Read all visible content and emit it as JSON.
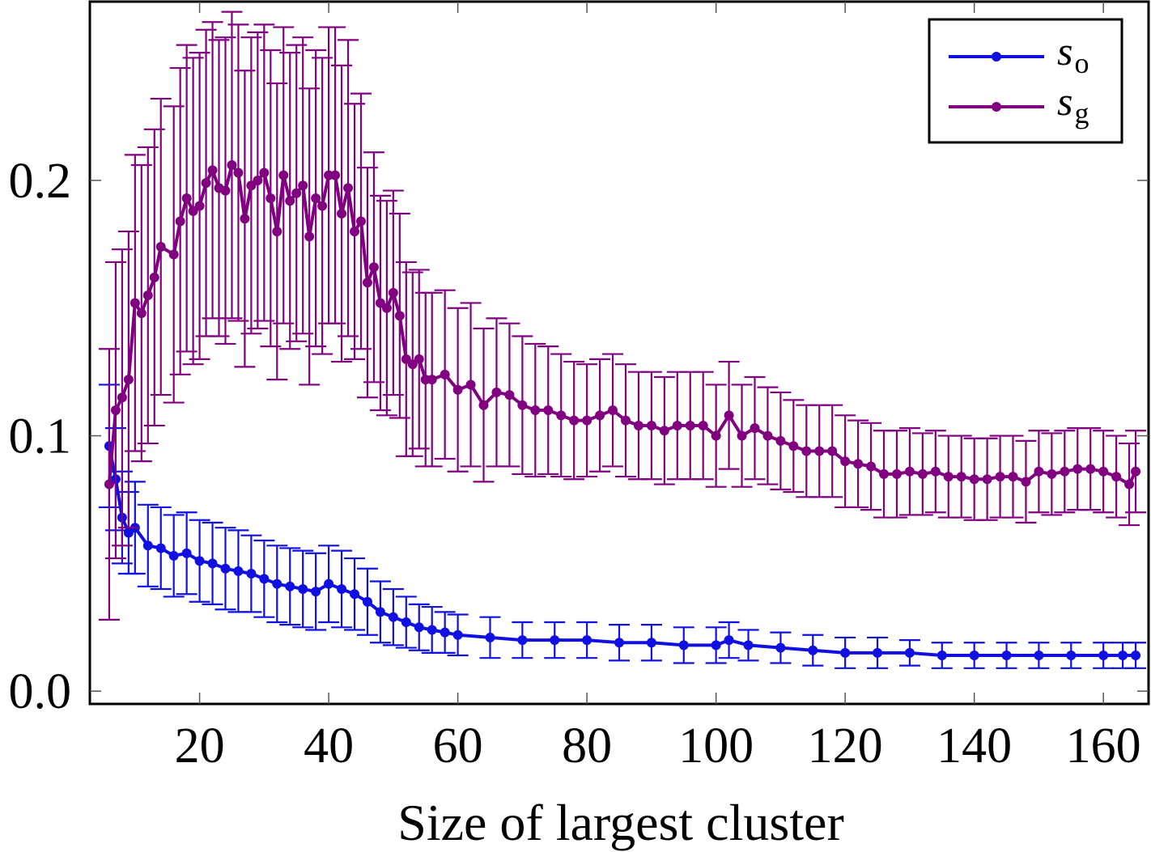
{
  "chart_data": {
    "type": "line",
    "title": "",
    "xlabel": "Size of largest cluster",
    "ylabel": "",
    "xlim": [
      3,
      167
    ],
    "ylim": [
      -0.005,
      0.27
    ],
    "xticks": [
      20,
      40,
      60,
      80,
      100,
      120,
      140,
      160
    ],
    "yticks": [
      0.0,
      0.1,
      0.2
    ],
    "ytick_labels": [
      "0.0",
      "0.1",
      "0.2"
    ],
    "grid": false,
    "legend_position": "top-right",
    "series": [
      {
        "name": "s",
        "subscript": "o",
        "color": "#1010e0",
        "points": [
          [
            6,
            0.096,
            0.024
          ],
          [
            7,
            0.083,
            0.02
          ],
          [
            8,
            0.068,
            0.018
          ],
          [
            9,
            0.062,
            0.016
          ],
          [
            10,
            0.064,
            0.018
          ],
          [
            12,
            0.057,
            0.016
          ],
          [
            14,
            0.056,
            0.016
          ],
          [
            16,
            0.053,
            0.016
          ],
          [
            18,
            0.054,
            0.016
          ],
          [
            20,
            0.051,
            0.016
          ],
          [
            22,
            0.05,
            0.016
          ],
          [
            24,
            0.048,
            0.016
          ],
          [
            26,
            0.047,
            0.016
          ],
          [
            28,
            0.046,
            0.015
          ],
          [
            30,
            0.044,
            0.015
          ],
          [
            32,
            0.042,
            0.015
          ],
          [
            34,
            0.041,
            0.015
          ],
          [
            36,
            0.04,
            0.015
          ],
          [
            38,
            0.039,
            0.015
          ],
          [
            40,
            0.042,
            0.015
          ],
          [
            42,
            0.04,
            0.015
          ],
          [
            44,
            0.038,
            0.014
          ],
          [
            46,
            0.035,
            0.013
          ],
          [
            48,
            0.031,
            0.012
          ],
          [
            50,
            0.029,
            0.011
          ],
          [
            52,
            0.027,
            0.01
          ],
          [
            54,
            0.025,
            0.009
          ],
          [
            56,
            0.024,
            0.009
          ],
          [
            58,
            0.023,
            0.008
          ],
          [
            60,
            0.022,
            0.008
          ],
          [
            65,
            0.021,
            0.008
          ],
          [
            70,
            0.02,
            0.007
          ],
          [
            75,
            0.02,
            0.007
          ],
          [
            80,
            0.02,
            0.007
          ],
          [
            85,
            0.019,
            0.007
          ],
          [
            90,
            0.019,
            0.007
          ],
          [
            95,
            0.018,
            0.007
          ],
          [
            100,
            0.018,
            0.007
          ],
          [
            102,
            0.02,
            0.007
          ],
          [
            105,
            0.018,
            0.006
          ],
          [
            110,
            0.017,
            0.006
          ],
          [
            115,
            0.016,
            0.006
          ],
          [
            120,
            0.015,
            0.006
          ],
          [
            125,
            0.015,
            0.006
          ],
          [
            130,
            0.015,
            0.005
          ],
          [
            135,
            0.014,
            0.005
          ],
          [
            140,
            0.014,
            0.005
          ],
          [
            145,
            0.014,
            0.005
          ],
          [
            150,
            0.014,
            0.005
          ],
          [
            155,
            0.014,
            0.005
          ],
          [
            160,
            0.014,
            0.005
          ],
          [
            163,
            0.014,
            0.005
          ],
          [
            165,
            0.014,
            0.005
          ]
        ]
      },
      {
        "name": "s",
        "subscript": "g",
        "color": "#800080",
        "points": [
          [
            6,
            0.081,
            0.053
          ],
          [
            7,
            0.11,
            0.058
          ],
          [
            8,
            0.115,
            0.058
          ],
          [
            9,
            0.122,
            0.058
          ],
          [
            10,
            0.152,
            0.058
          ],
          [
            11,
            0.148,
            0.058
          ],
          [
            12,
            0.155,
            0.058
          ],
          [
            13,
            0.162,
            0.058
          ],
          [
            14,
            0.174,
            0.058
          ],
          [
            16,
            0.171,
            0.058
          ],
          [
            17,
            0.184,
            0.06
          ],
          [
            18,
            0.193,
            0.06
          ],
          [
            19,
            0.188,
            0.06
          ],
          [
            20,
            0.19,
            0.06
          ],
          [
            21,
            0.199,
            0.06
          ],
          [
            22,
            0.204,
            0.058
          ],
          [
            23,
            0.197,
            0.058
          ],
          [
            24,
            0.196,
            0.06
          ],
          [
            25,
            0.206,
            0.06
          ],
          [
            26,
            0.203,
            0.058
          ],
          [
            27,
            0.185,
            0.058
          ],
          [
            28,
            0.198,
            0.058
          ],
          [
            29,
            0.2,
            0.058
          ],
          [
            30,
            0.203,
            0.058
          ],
          [
            31,
            0.193,
            0.058
          ],
          [
            32,
            0.18,
            0.058
          ],
          [
            33,
            0.202,
            0.058
          ],
          [
            34,
            0.192,
            0.058
          ],
          [
            35,
            0.195,
            0.058
          ],
          [
            36,
            0.198,
            0.058
          ],
          [
            37,
            0.178,
            0.058
          ],
          [
            38,
            0.193,
            0.058
          ],
          [
            39,
            0.19,
            0.058
          ],
          [
            40,
            0.202,
            0.058
          ],
          [
            41,
            0.202,
            0.058
          ],
          [
            42,
            0.187,
            0.058
          ],
          [
            43,
            0.197,
            0.058
          ],
          [
            44,
            0.18,
            0.05
          ],
          [
            45,
            0.184,
            0.05
          ],
          [
            46,
            0.16,
            0.045
          ],
          [
            47,
            0.166,
            0.045
          ],
          [
            48,
            0.152,
            0.042
          ],
          [
            49,
            0.15,
            0.042
          ],
          [
            50,
            0.156,
            0.04
          ],
          [
            51,
            0.147,
            0.04
          ],
          [
            52,
            0.13,
            0.038
          ],
          [
            53,
            0.128,
            0.036
          ],
          [
            54,
            0.13,
            0.035
          ],
          [
            55,
            0.122,
            0.034
          ],
          [
            56,
            0.122,
            0.034
          ],
          [
            58,
            0.124,
            0.033
          ],
          [
            60,
            0.118,
            0.032
          ],
          [
            62,
            0.12,
            0.032
          ],
          [
            64,
            0.112,
            0.03
          ],
          [
            66,
            0.117,
            0.029
          ],
          [
            68,
            0.116,
            0.028
          ],
          [
            70,
            0.112,
            0.027
          ],
          [
            72,
            0.11,
            0.026
          ],
          [
            74,
            0.11,
            0.025
          ],
          [
            76,
            0.108,
            0.024
          ],
          [
            78,
            0.106,
            0.023
          ],
          [
            80,
            0.106,
            0.022
          ],
          [
            82,
            0.108,
            0.022
          ],
          [
            84,
            0.11,
            0.022
          ],
          [
            86,
            0.106,
            0.022
          ],
          [
            88,
            0.104,
            0.021
          ],
          [
            90,
            0.104,
            0.021
          ],
          [
            92,
            0.102,
            0.021
          ],
          [
            94,
            0.104,
            0.021
          ],
          [
            96,
            0.104,
            0.021
          ],
          [
            98,
            0.104,
            0.021
          ],
          [
            100,
            0.1,
            0.02
          ],
          [
            102,
            0.108,
            0.021
          ],
          [
            104,
            0.1,
            0.02
          ],
          [
            106,
            0.103,
            0.02
          ],
          [
            108,
            0.1,
            0.019
          ],
          [
            110,
            0.098,
            0.019
          ],
          [
            112,
            0.096,
            0.018
          ],
          [
            114,
            0.094,
            0.018
          ],
          [
            116,
            0.094,
            0.018
          ],
          [
            118,
            0.094,
            0.018
          ],
          [
            120,
            0.09,
            0.018
          ],
          [
            122,
            0.089,
            0.017
          ],
          [
            124,
            0.088,
            0.017
          ],
          [
            126,
            0.085,
            0.017
          ],
          [
            128,
            0.085,
            0.017
          ],
          [
            130,
            0.086,
            0.017
          ],
          [
            132,
            0.085,
            0.016
          ],
          [
            134,
            0.086,
            0.016
          ],
          [
            136,
            0.084,
            0.016
          ],
          [
            138,
            0.084,
            0.016
          ],
          [
            140,
            0.083,
            0.016
          ],
          [
            142,
            0.083,
            0.016
          ],
          [
            144,
            0.084,
            0.016
          ],
          [
            146,
            0.084,
            0.016
          ],
          [
            148,
            0.082,
            0.016
          ],
          [
            150,
            0.086,
            0.016
          ],
          [
            152,
            0.085,
            0.016
          ],
          [
            154,
            0.086,
            0.016
          ],
          [
            156,
            0.087,
            0.016
          ],
          [
            158,
            0.087,
            0.016
          ],
          [
            160,
            0.086,
            0.016
          ],
          [
            162,
            0.084,
            0.016
          ],
          [
            164,
            0.081,
            0.016
          ],
          [
            165,
            0.086,
            0.016
          ]
        ]
      }
    ]
  }
}
